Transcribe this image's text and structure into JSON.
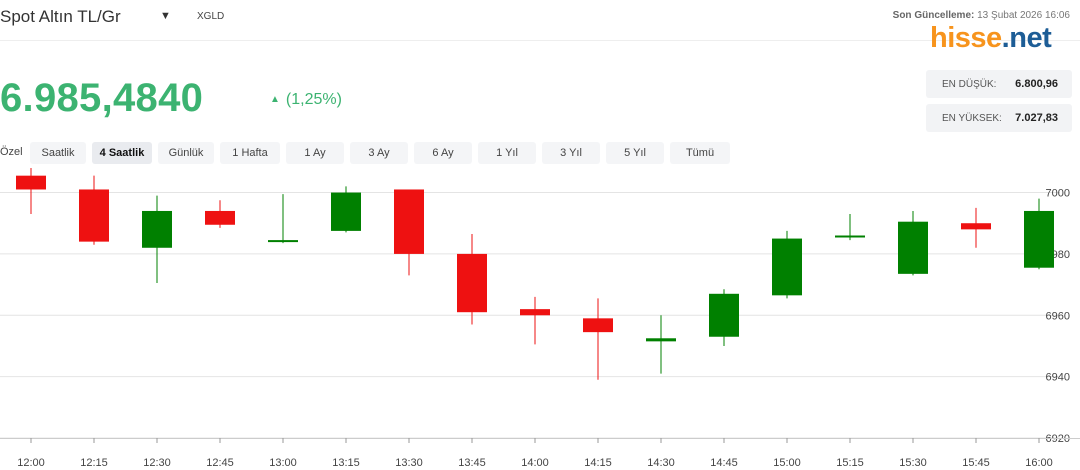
{
  "header": {
    "title": "Spot Altın TL/Gr",
    "symbol": "XGLD",
    "updated_label": "Son Güncelleme:",
    "updated_value": "13 Şubat 2026 16:06",
    "logo_part1": "hisse",
    "logo_part2": ".net",
    "caret_icon": "caret-down-icon"
  },
  "quote": {
    "price": "6.985,4840",
    "change": "(1,25%)",
    "direction_icon": "triangle-up-icon",
    "color_up": "#3cb371"
  },
  "stats": {
    "low_label": "EN DÜŞÜK:",
    "low_value": "6.800,96",
    "high_label": "EN YÜKSEK:",
    "high_value": "7.027,83"
  },
  "ranges": {
    "label": "Özel",
    "items": [
      "Saatlik",
      "4 Saatlik",
      "Günlük",
      "1 Hafta",
      "1 Ay",
      "3 Ay",
      "6 Ay",
      "1 Yıl",
      "3 Yıl",
      "5 Yıl",
      "Tümü"
    ],
    "active": "4 Saatlik"
  },
  "chart_data": {
    "type": "candlestick",
    "categories": [
      "12:00",
      "12:15",
      "12:30",
      "12:45",
      "13:00",
      "13:15",
      "13:30",
      "13:45",
      "14:00",
      "14:15",
      "14:30",
      "14:45",
      "15:00",
      "15:15",
      "15:30",
      "15:45",
      "16:00"
    ],
    "open": [
      7005.5,
      7001.0,
      6982.0,
      6994.0,
      6984.0,
      6987.5,
      7001.0,
      6980.0,
      6962.0,
      6959.0,
      6951.5,
      6953.0,
      6966.5,
      6985.5,
      6973.5,
      6990.0,
      6975.5
    ],
    "high": [
      7008.0,
      7005.5,
      6999.0,
      6997.5,
      6999.5,
      7002.0,
      7001.0,
      6986.5,
      6966.0,
      6965.5,
      6960.0,
      6968.5,
      6987.5,
      6993.0,
      6994.0,
      6995.0,
      6998.0
    ],
    "low": [
      6993.0,
      6983.0,
      6970.5,
      6988.5,
      6983.5,
      6987.0,
      6973.0,
      6957.0,
      6950.5,
      6939.0,
      6941.0,
      6950.0,
      6965.5,
      6984.5,
      6973.0,
      6982.0,
      6975.0
    ],
    "close": [
      7001.0,
      6984.0,
      6994.0,
      6989.5,
      6984.5,
      7000.0,
      6980.0,
      6961.0,
      6960.0,
      6954.5,
      6952.5,
      6967.0,
      6985.0,
      6986.0,
      6990.5,
      6988.0,
      6994.0
    ],
    "ylim": [
      6920,
      7008
    ],
    "yticks": [
      6920,
      6940,
      6960,
      6980,
      7000
    ],
    "grid": true,
    "y_axis_position": "right",
    "up_color": "#008000",
    "down_color": "#ee1111"
  }
}
